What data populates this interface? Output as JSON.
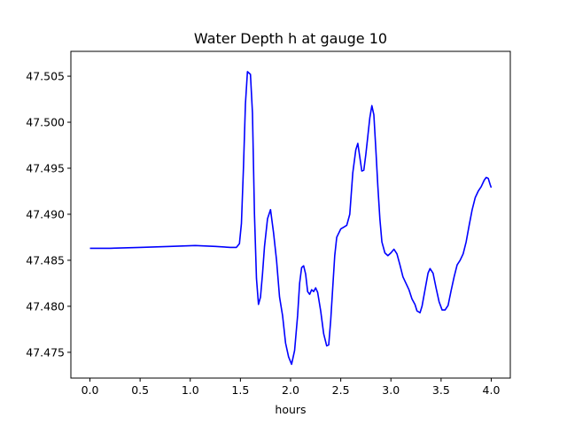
{
  "chart_data": {
    "type": "line",
    "title": "Water Depth h at gauge 10",
    "xlabel": "hours",
    "ylabel": "",
    "xlim": [
      -0.19,
      4.19
    ],
    "ylim": [
      47.4722,
      47.5077
    ],
    "x_ticks": [
      0.0,
      0.5,
      1.0,
      1.5,
      2.0,
      2.5,
      3.0,
      3.5,
      4.0
    ],
    "x_tick_labels": [
      "0.0",
      "0.5",
      "1.0",
      "1.5",
      "2.0",
      "2.5",
      "3.0",
      "3.5",
      "4.0"
    ],
    "y_ticks": [
      47.475,
      47.48,
      47.485,
      47.49,
      47.495,
      47.5,
      47.505
    ],
    "y_tick_labels": [
      "47.475",
      "47.480",
      "47.485",
      "47.490",
      "47.495",
      "47.500",
      "47.505"
    ],
    "grid": false,
    "legend": "none",
    "series": [
      {
        "color": "#0000ff",
        "points": [
          [
            0.0,
            47.4863
          ],
          [
            0.2,
            47.4863
          ],
          [
            0.5,
            47.4864
          ],
          [
            0.8,
            47.4865
          ],
          [
            1.05,
            47.4866
          ],
          [
            1.25,
            47.4865
          ],
          [
            1.4,
            47.4864
          ],
          [
            1.46,
            47.4864
          ],
          [
            1.49,
            47.4868
          ],
          [
            1.51,
            47.489
          ],
          [
            1.53,
            47.495
          ],
          [
            1.55,
            47.502
          ],
          [
            1.57,
            47.5055
          ],
          [
            1.6,
            47.5052
          ],
          [
            1.62,
            47.501
          ],
          [
            1.64,
            47.49
          ],
          [
            1.66,
            47.483
          ],
          [
            1.68,
            47.4802
          ],
          [
            1.7,
            47.481
          ],
          [
            1.72,
            47.4835
          ],
          [
            1.74,
            47.4865
          ],
          [
            1.77,
            47.4895
          ],
          [
            1.8,
            47.4905
          ],
          [
            1.83,
            47.488
          ],
          [
            1.86,
            47.485
          ],
          [
            1.89,
            47.481
          ],
          [
            1.92,
            47.479
          ],
          [
            1.95,
            47.476
          ],
          [
            1.98,
            47.4745
          ],
          [
            2.01,
            47.4737
          ],
          [
            2.04,
            47.4752
          ],
          [
            2.07,
            47.479
          ],
          [
            2.09,
            47.4825
          ],
          [
            2.11,
            47.4842
          ],
          [
            2.13,
            47.4844
          ],
          [
            2.15,
            47.4835
          ],
          [
            2.17,
            47.4816
          ],
          [
            2.19,
            47.4813
          ],
          [
            2.21,
            47.4818
          ],
          [
            2.23,
            47.4816
          ],
          [
            2.25,
            47.482
          ],
          [
            2.27,
            47.4815
          ],
          [
            2.3,
            47.4795
          ],
          [
            2.33,
            47.477
          ],
          [
            2.36,
            47.4757
          ],
          [
            2.38,
            47.4758
          ],
          [
            2.4,
            47.4785
          ],
          [
            2.42,
            47.482
          ],
          [
            2.44,
            47.4855
          ],
          [
            2.46,
            47.4875
          ],
          [
            2.5,
            47.4884
          ],
          [
            2.53,
            47.4886
          ],
          [
            2.56,
            47.4888
          ],
          [
            2.59,
            47.49
          ],
          [
            2.62,
            47.4945
          ],
          [
            2.65,
            47.497
          ],
          [
            2.67,
            47.4977
          ],
          [
            2.69,
            47.4962
          ],
          [
            2.71,
            47.4947
          ],
          [
            2.73,
            47.4948
          ],
          [
            2.75,
            47.4965
          ],
          [
            2.77,
            47.4985
          ],
          [
            2.79,
            47.5005
          ],
          [
            2.81,
            47.5018
          ],
          [
            2.83,
            47.5008
          ],
          [
            2.85,
            47.497
          ],
          [
            2.87,
            47.493
          ],
          [
            2.89,
            47.4895
          ],
          [
            2.91,
            47.487
          ],
          [
            2.94,
            47.4858
          ],
          [
            2.97,
            47.4855
          ],
          [
            3.0,
            47.4858
          ],
          [
            3.03,
            47.4862
          ],
          [
            3.06,
            47.4857
          ],
          [
            3.09,
            47.4845
          ],
          [
            3.12,
            47.4832
          ],
          [
            3.15,
            47.4825
          ],
          [
            3.18,
            47.4818
          ],
          [
            3.21,
            47.4808
          ],
          [
            3.24,
            47.4802
          ],
          [
            3.26,
            47.4795
          ],
          [
            3.29,
            47.4793
          ],
          [
            3.31,
            47.48
          ],
          [
            3.34,
            47.4818
          ],
          [
            3.37,
            47.4836
          ],
          [
            3.39,
            47.4841
          ],
          [
            3.42,
            47.4836
          ],
          [
            3.45,
            47.482
          ],
          [
            3.48,
            47.4805
          ],
          [
            3.51,
            47.4796
          ],
          [
            3.54,
            47.4796
          ],
          [
            3.57,
            47.4801
          ],
          [
            3.6,
            47.4817
          ],
          [
            3.63,
            47.4832
          ],
          [
            3.66,
            47.4845
          ],
          [
            3.69,
            47.485
          ],
          [
            3.72,
            47.4857
          ],
          [
            3.75,
            47.487
          ],
          [
            3.78,
            47.4888
          ],
          [
            3.81,
            47.4905
          ],
          [
            3.84,
            47.4918
          ],
          [
            3.87,
            47.4925
          ],
          [
            3.9,
            47.493
          ],
          [
            3.93,
            47.4937
          ],
          [
            3.95,
            47.494
          ],
          [
            3.97,
            47.4939
          ],
          [
            3.99,
            47.4932
          ],
          [
            4.0,
            47.4929
          ]
        ]
      }
    ]
  }
}
